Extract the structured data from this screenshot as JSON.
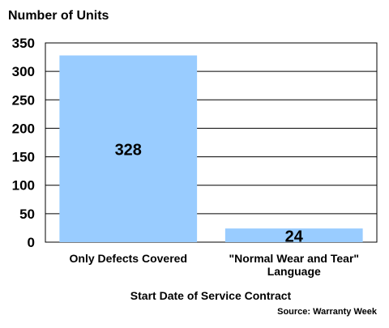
{
  "chart_data": {
    "type": "bar",
    "ylabel": "Number of Units",
    "xlabel": "Start Date of Service Contract",
    "source": "Source: Warranty Week",
    "categories": [
      [
        "Only Defects Covered"
      ],
      [
        "\"Normal Wear and Tear\"",
        "Language"
      ]
    ],
    "values": [
      328,
      24
    ],
    "data_labels": [
      "328",
      "24"
    ],
    "ylim": [
      0,
      350
    ],
    "yticks": [
      0,
      50,
      100,
      150,
      200,
      250,
      300,
      350
    ],
    "grid": true,
    "colors": {
      "bar": "#99ccff",
      "grid": "#000000",
      "text": "#000000"
    }
  }
}
